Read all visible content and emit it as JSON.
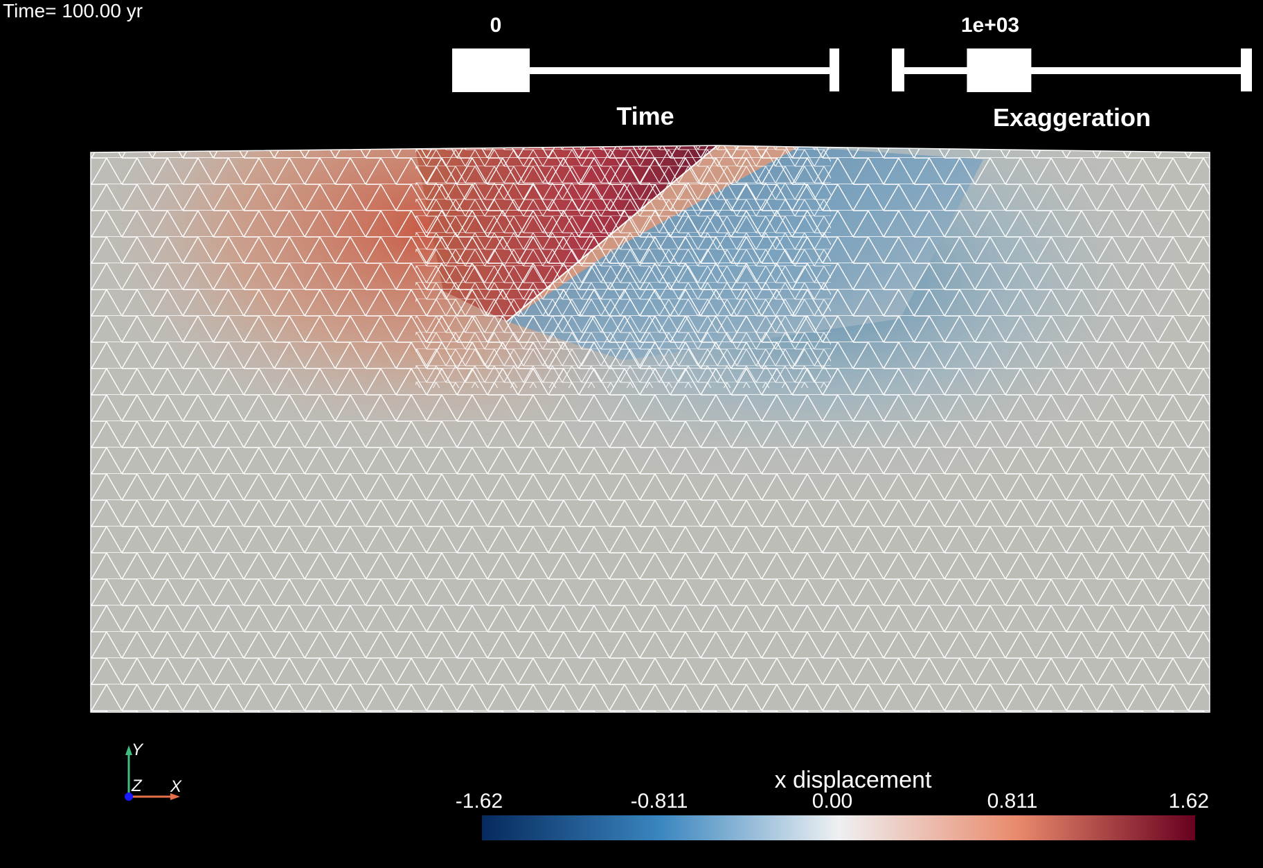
{
  "annotation": {
    "time_text": "Time= 100.00 yr"
  },
  "sliders": {
    "time": {
      "value_text": "0",
      "title": "Time",
      "fraction": 0.0
    },
    "exaggeration": {
      "value_text": "1e+03",
      "title": "Exaggeration",
      "fraction": 0.23
    }
  },
  "scalar_bar": {
    "title": "x displacement",
    "labels": [
      "-1.62",
      "-0.811",
      "0.00",
      "0.811",
      "1.62"
    ],
    "range": [
      -1.62,
      1.62
    ],
    "colormap": "Cool to Warm (Extended)",
    "colors": {
      "min": "#062a5e",
      "low": "#3a86bf",
      "mid": "#eef0f2",
      "high": "#e98a6c",
      "max": "#67001f"
    }
  },
  "mesh": {
    "edge_color": "#ffffff",
    "background_color": "#bdbdb8",
    "fault_dip_direction": "left-dipping thrust"
  },
  "axes": {
    "x_label": "X",
    "y_label": "Y",
    "z_label": "Z",
    "colors": {
      "x": "#e8704a",
      "y": "#3fbf7f",
      "z": "#1a1aff"
    }
  }
}
